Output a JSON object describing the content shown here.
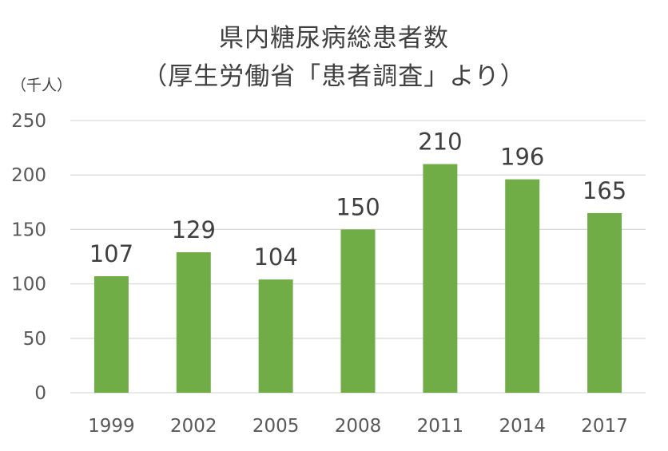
{
  "chart_data": {
    "type": "bar",
    "title": "県内糖尿病総患者数",
    "subtitle": "（厚生労働省「患者調査」より）",
    "unit_label": "（千人）",
    "categories": [
      "1999",
      "2002",
      "2005",
      "2008",
      "2011",
      "2014",
      "2017"
    ],
    "values": [
      107,
      129,
      104,
      150,
      210,
      196,
      165
    ],
    "ylim": [
      0,
      250
    ],
    "yticks": [
      "0",
      "50",
      "100",
      "150",
      "200",
      "250"
    ],
    "grid": true,
    "legend": "none",
    "colors": {
      "bar": "#70AD47",
      "grid": "#D9D9D9"
    }
  }
}
